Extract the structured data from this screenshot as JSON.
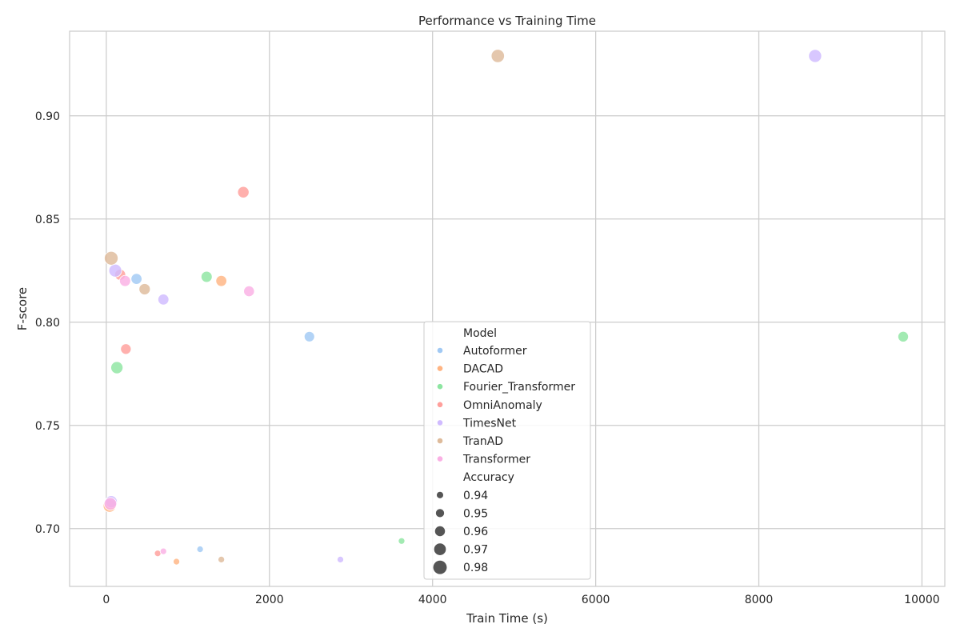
{
  "chart_data": {
    "type": "scatter",
    "title": "Performance vs Training Time",
    "xlabel": "Train Time (s)",
    "ylabel": "F-score",
    "xlim": [
      -450,
      10280
    ],
    "ylim": [
      0.672,
      0.941
    ],
    "xticks": [
      0,
      2000,
      4000,
      6000,
      8000,
      10000
    ],
    "xtick_labels": [
      "0",
      "2000",
      "4000",
      "6000",
      "8000",
      "10000"
    ],
    "yticks": [
      0.7,
      0.75,
      0.8,
      0.85,
      0.9
    ],
    "ytick_labels": [
      "0.70",
      "0.75",
      "0.80",
      "0.85",
      "0.90"
    ],
    "grid": true,
    "legend_placement": "lower-center",
    "hue_title": "Model",
    "size_title": "Accuracy",
    "size_levels": [
      0.94,
      0.95,
      0.96,
      0.97,
      0.98
    ],
    "size_level_labels": [
      "0.94",
      "0.95",
      "0.96",
      "0.97",
      "0.98"
    ],
    "size_legend_color": "#555555",
    "accuracy_range": [
      0.935,
      0.985
    ],
    "series": [
      {
        "name": "Autoformer",
        "color": "#a1c9f4",
        "points": [
          {
            "x": 370,
            "y": 0.821,
            "accuracy": 0.965
          },
          {
            "x": 2490,
            "y": 0.793,
            "accuracy": 0.962
          },
          {
            "x": 1150,
            "y": 0.69,
            "accuracy": 0.94
          }
        ]
      },
      {
        "name": "DACAD",
        "color": "#ffb482",
        "points": [
          {
            "x": 1410,
            "y": 0.82,
            "accuracy": 0.965
          },
          {
            "x": 40,
            "y": 0.711,
            "accuracy": 0.975
          },
          {
            "x": 860,
            "y": 0.684,
            "accuracy": 0.94
          }
        ]
      },
      {
        "name": "Fourier_Transformer",
        "color": "#8de5a1",
        "points": [
          {
            "x": 1230,
            "y": 0.822,
            "accuracy": 0.966
          },
          {
            "x": 130,
            "y": 0.778,
            "accuracy": 0.972
          },
          {
            "x": 9770,
            "y": 0.793,
            "accuracy": 0.963
          },
          {
            "x": 3620,
            "y": 0.694,
            "accuracy": 0.94
          }
        ]
      },
      {
        "name": "OmniAnomaly",
        "color": "#ff9f9b",
        "points": [
          {
            "x": 1680,
            "y": 0.863,
            "accuracy": 0.968
          },
          {
            "x": 240,
            "y": 0.787,
            "accuracy": 0.963
          },
          {
            "x": 170,
            "y": 0.823,
            "accuracy": 0.965
          },
          {
            "x": 630,
            "y": 0.688,
            "accuracy": 0.94
          }
        ]
      },
      {
        "name": "TimesNet",
        "color": "#d0bbff",
        "points": [
          {
            "x": 8690,
            "y": 0.929,
            "accuracy": 0.977
          },
          {
            "x": 110,
            "y": 0.825,
            "accuracy": 0.976
          },
          {
            "x": 700,
            "y": 0.811,
            "accuracy": 0.965
          },
          {
            "x": 60,
            "y": 0.713,
            "accuracy": 0.972
          },
          {
            "x": 2870,
            "y": 0.685,
            "accuracy": 0.94
          }
        ]
      },
      {
        "name": "TranAD",
        "color": "#debb9b",
        "points": [
          {
            "x": 4800,
            "y": 0.929,
            "accuracy": 0.978
          },
          {
            "x": 60,
            "y": 0.831,
            "accuracy": 0.981
          },
          {
            "x": 470,
            "y": 0.816,
            "accuracy": 0.967
          },
          {
            "x": 1410,
            "y": 0.685,
            "accuracy": 0.94
          }
        ]
      },
      {
        "name": "Transformer",
        "color": "#fab0e4",
        "points": [
          {
            "x": 1750,
            "y": 0.815,
            "accuracy": 0.964
          },
          {
            "x": 230,
            "y": 0.82,
            "accuracy": 0.966
          },
          {
            "x": 50,
            "y": 0.712,
            "accuracy": 0.974
          },
          {
            "x": 700,
            "y": 0.689,
            "accuracy": 0.94
          }
        ]
      }
    ]
  }
}
